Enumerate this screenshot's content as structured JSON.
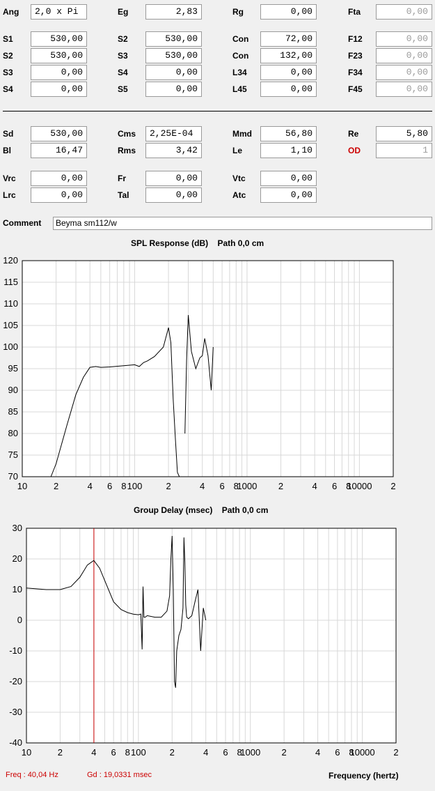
{
  "params": {
    "ang": {
      "label": "Ang",
      "value": "2,0 x Pi"
    },
    "eg": {
      "label": "Eg",
      "value": "2,83"
    },
    "rg": {
      "label": "Rg",
      "value": "0,00"
    },
    "fta": {
      "label": "Fta",
      "value": "0,00"
    },
    "s1": {
      "label": "S1",
      "value": "530,00"
    },
    "s2a": {
      "label": "S2",
      "value": "530,00"
    },
    "con1": {
      "label": "Con",
      "value": "72,00"
    },
    "f12": {
      "label": "F12",
      "value": "0,00"
    },
    "s2b": {
      "label": "S2",
      "value": "530,00"
    },
    "s3a": {
      "label": "S3",
      "value": "530,00"
    },
    "con2": {
      "label": "Con",
      "value": "132,00"
    },
    "f23": {
      "label": "F23",
      "value": "0,00"
    },
    "s3b": {
      "label": "S3",
      "value": "0,00"
    },
    "s4a": {
      "label": "S4",
      "value": "0,00"
    },
    "l34": {
      "label": "L34",
      "value": "0,00"
    },
    "f34": {
      "label": "F34",
      "value": "0,00"
    },
    "s4b": {
      "label": "S4",
      "value": "0,00"
    },
    "s5": {
      "label": "S5",
      "value": "0,00"
    },
    "l45": {
      "label": "L45",
      "value": "0,00"
    },
    "f45": {
      "label": "F45",
      "value": "0,00"
    },
    "sd": {
      "label": "Sd",
      "value": "530,00"
    },
    "cms": {
      "label": "Cms",
      "value": "2,25E-04"
    },
    "mmd": {
      "label": "Mmd",
      "value": "56,80"
    },
    "re": {
      "label": "Re",
      "value": "5,80"
    },
    "bl": {
      "label": "Bl",
      "value": "16,47"
    },
    "rms": {
      "label": "Rms",
      "value": "3,42"
    },
    "le": {
      "label": "Le",
      "value": "1,10"
    },
    "od": {
      "label": "OD",
      "value": "1"
    },
    "vrc": {
      "label": "Vrc",
      "value": "0,00"
    },
    "fr": {
      "label": "Fr",
      "value": "0,00"
    },
    "vtc": {
      "label": "Vtc",
      "value": "0,00"
    },
    "lrc": {
      "label": "Lrc",
      "value": "0,00"
    },
    "tal": {
      "label": "Tal",
      "value": "0,00"
    },
    "atc": {
      "label": "Atc",
      "value": "0,00"
    }
  },
  "comment": {
    "label": "Comment",
    "value": "Beyma sm112/w"
  },
  "colors": {
    "accent_red": "#cc0000",
    "plot_bg": "#ffffff",
    "window_bg": "#f0f0f0"
  },
  "chart_data": [
    {
      "type": "line",
      "title": "SPL Response (dB)    Path 0,0 cm",
      "xscale": "log",
      "xlim": [
        10,
        20000
      ],
      "ylim": [
        70,
        120
      ],
      "grid": true,
      "x_tick_labels": [
        "10",
        "2",
        "4",
        "6",
        "8",
        "100",
        "2",
        "4",
        "6",
        "8",
        "1000",
        "2",
        "4",
        "6",
        "8",
        "10000",
        "2"
      ],
      "y_tick_labels": [
        "120",
        "115",
        "110",
        "105",
        "100",
        "95",
        "90",
        "85",
        "80",
        "75",
        "70"
      ],
      "series": [
        {
          "x": [
            18,
            20,
            25,
            30,
            35,
            40,
            45,
            50,
            60,
            80,
            100,
            110,
            120,
            130,
            150,
            180,
            200,
            210,
            220,
            230,
            240,
            250,
            260,
            270
          ],
          "y": [
            70,
            73,
            82,
            89,
            93,
            95.3,
            95.5,
            95.3,
            95.4,
            95.7,
            95.9,
            95.5,
            96.4,
            96.8,
            97.8,
            100,
            104.5,
            101,
            88,
            79,
            71,
            70,
            70,
            70
          ]
        },
        {
          "x": [
            280,
            290,
            300,
            320,
            350,
            380,
            400,
            420,
            450,
            480,
            500
          ],
          "y": [
            80,
            97,
            107.4,
            99,
            95,
            97.5,
            98,
            102,
            98,
            90,
            100
          ]
        }
      ]
    },
    {
      "type": "line",
      "title": "Group Delay (msec)    Path 0,0 cm",
      "xscale": "log",
      "xlim": [
        10,
        20000
      ],
      "ylim": [
        -40,
        30
      ],
      "grid": true,
      "x_tick_labels": [
        "10",
        "2",
        "4",
        "6",
        "8",
        "100",
        "2",
        "4",
        "6",
        "8",
        "1000",
        "2",
        "4",
        "6",
        "8",
        "10000",
        "2"
      ],
      "y_tick_labels": [
        "30",
        "20",
        "10",
        "0",
        "-10",
        "-20",
        "-30",
        "-40"
      ],
      "cursor_x": 40.04,
      "series": [
        {
          "x": [
            10,
            15,
            20,
            25,
            30,
            35,
            40,
            45,
            50,
            60,
            70,
            80,
            90,
            100,
            105,
            108,
            110,
            112,
            115,
            120,
            140,
            160,
            180,
            190,
            195,
            200,
            205,
            210,
            215,
            220,
            230,
            240,
            250,
            255,
            260,
            265,
            270,
            280,
            300,
            320,
            340,
            360,
            380,
            400
          ],
          "y": [
            10.5,
            10,
            10,
            11,
            14,
            18,
            19.5,
            17,
            13,
            6,
            3.5,
            2.5,
            2,
            1.8,
            2,
            -9.5,
            11,
            1,
            1,
            1.5,
            1,
            1,
            3,
            8,
            20,
            27.5,
            10,
            -20,
            -22,
            -10,
            -5,
            -3,
            4,
            27,
            19,
            5,
            1,
            0.5,
            1.5,
            6,
            10,
            -10,
            4,
            0
          ]
        }
      ]
    }
  ],
  "status": {
    "freq": "Freq : 40,04 Hz",
    "gd": "Gd : 19,0331 msec",
    "xlabel": "Frequency (hertz)"
  }
}
